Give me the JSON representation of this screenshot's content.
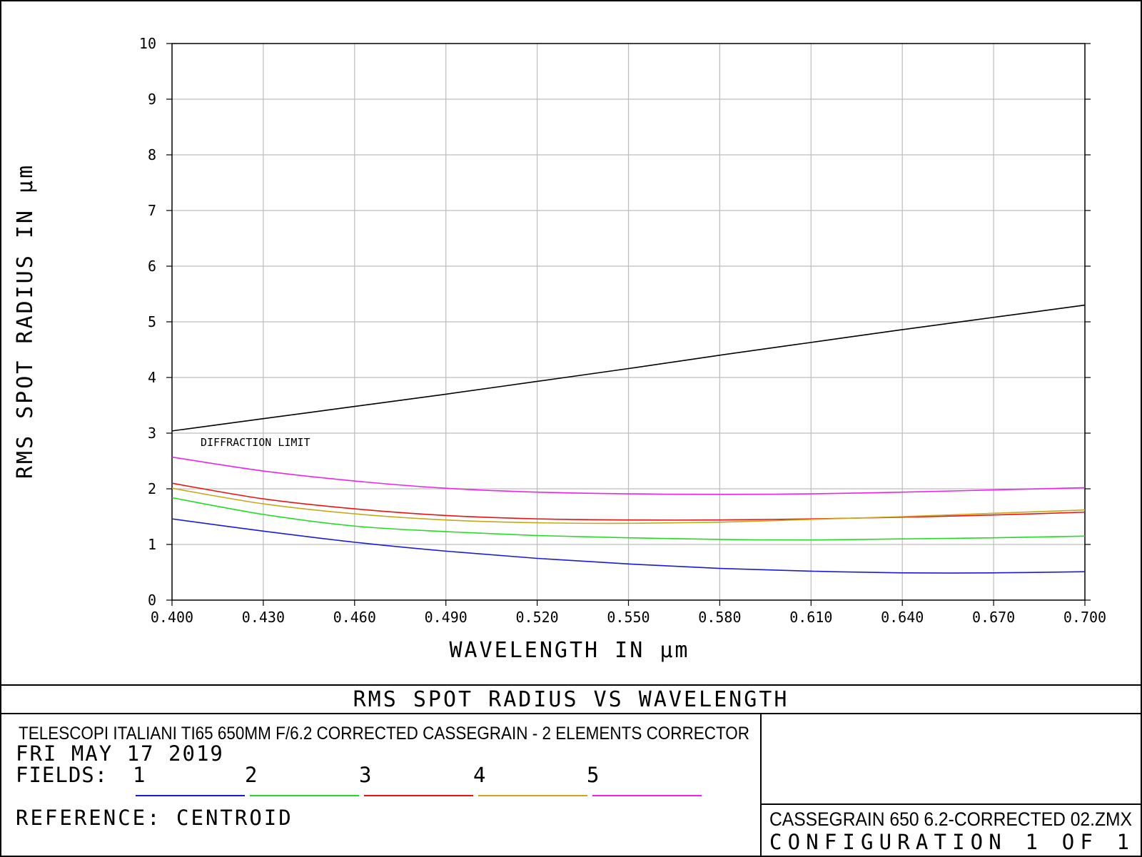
{
  "chart_data": {
    "type": "line",
    "title": "RMS SPOT RADIUS VS WAVELENGTH",
    "xlabel": "WAVELENGTH IN μm",
    "ylabel": "RMS SPOT RADIUS IN μm",
    "xlim": [
      0.4,
      0.7
    ],
    "ylim": [
      0,
      10
    ],
    "grid": true,
    "x_ticks": [
      "0.400",
      "0.430",
      "0.460",
      "0.490",
      "0.520",
      "0.550",
      "0.580",
      "0.610",
      "0.640",
      "0.670",
      "0.700"
    ],
    "y_ticks": [
      "0",
      "1",
      "2",
      "3",
      "4",
      "5",
      "6",
      "7",
      "8",
      "9",
      "10"
    ],
    "x": [
      0.4,
      0.43,
      0.46,
      0.49,
      0.52,
      0.55,
      0.58,
      0.61,
      0.64,
      0.67,
      0.7
    ],
    "series": [
      {
        "name": "1",
        "color": "#1a1adc",
        "values": [
          1.46,
          1.24,
          1.04,
          0.88,
          0.75,
          0.65,
          0.57,
          0.52,
          0.49,
          0.49,
          0.51
        ]
      },
      {
        "name": "2",
        "color": "#22dd22",
        "values": [
          1.84,
          1.54,
          1.33,
          1.23,
          1.16,
          1.12,
          1.09,
          1.08,
          1.1,
          1.12,
          1.15
        ]
      },
      {
        "name": "3",
        "color": "#ee1111",
        "values": [
          2.1,
          1.82,
          1.64,
          1.52,
          1.46,
          1.44,
          1.44,
          1.46,
          1.49,
          1.53,
          1.58
        ]
      },
      {
        "name": "4",
        "color": "#c8a818",
        "values": [
          2.01,
          1.73,
          1.55,
          1.44,
          1.39,
          1.38,
          1.4,
          1.45,
          1.5,
          1.56,
          1.62
        ]
      },
      {
        "name": "5",
        "color": "#ee22ee",
        "values": [
          2.57,
          2.32,
          2.14,
          2.01,
          1.94,
          1.91,
          1.9,
          1.91,
          1.94,
          1.98,
          2.02
        ]
      },
      {
        "name": "DIFFRACTION LIMIT",
        "color": "#000000",
        "values": [
          3.04,
          3.26,
          3.48,
          3.7,
          3.93,
          4.16,
          4.4,
          4.63,
          4.86,
          5.08,
          5.3
        ]
      }
    ],
    "annotations": [
      "DIFFRACTION LIMIT"
    ]
  },
  "info": {
    "system_title": "TELESCOPI ITALIANI TI65 650MM F/6.2  CORRECTED CASSEGRAIN - 2 ELEMENTS CORRECTOR",
    "date": "FRI MAY 17 2019",
    "fields_label": "FIELDS:",
    "reference": "REFERENCE: CENTROID",
    "file_name": "CASSEGRAIN 650 6.2-CORRECTED 02.ZMX",
    "configuration": "CONFIGURATION 1 OF 1"
  }
}
